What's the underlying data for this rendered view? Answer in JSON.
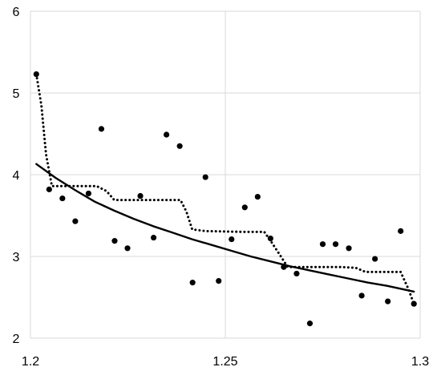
{
  "chart_data": {
    "type": "scatter",
    "title": "",
    "xlabel": "",
    "ylabel": "",
    "xlim": [
      1.2,
      1.3
    ],
    "ylim": [
      2,
      6
    ],
    "x_ticks": [
      1.2,
      1.25,
      1.3
    ],
    "x_tick_labels": [
      "1.2",
      "1.25",
      "1.3"
    ],
    "y_ticks": [
      2,
      3,
      4,
      5,
      6
    ],
    "y_tick_labels": [
      "2",
      "3",
      "4",
      "5",
      "6"
    ],
    "grid": true,
    "legend": "none",
    "colors": {
      "marker": "#000000",
      "line": "#000000",
      "grid": "#d9d9d9",
      "background": "#ffffff"
    },
    "series": [
      {
        "type": "scatter",
        "marker": "circle",
        "points": [
          [
            1.2015,
            5.23
          ],
          [
            1.2048,
            3.82
          ],
          [
            1.2082,
            3.71
          ],
          [
            1.2115,
            3.43
          ],
          [
            1.2149,
            3.77
          ],
          [
            1.2182,
            4.56
          ],
          [
            1.2216,
            3.19
          ],
          [
            1.2249,
            3.1
          ],
          [
            1.2282,
            3.74
          ],
          [
            1.2316,
            3.23
          ],
          [
            1.2349,
            4.49
          ],
          [
            1.2383,
            4.35
          ],
          [
            1.2416,
            2.68
          ],
          [
            1.2449,
            3.97
          ],
          [
            1.2483,
            2.7
          ],
          [
            1.2516,
            3.21
          ],
          [
            1.255,
            3.6
          ],
          [
            1.2583,
            3.73
          ],
          [
            1.2616,
            3.22
          ],
          [
            1.265,
            2.87
          ],
          [
            1.2683,
            2.79
          ],
          [
            1.2717,
            2.18
          ],
          [
            1.275,
            3.15
          ],
          [
            1.2783,
            3.15
          ],
          [
            1.2817,
            3.1
          ],
          [
            1.285,
            2.52
          ],
          [
            1.2884,
            2.97
          ],
          [
            1.2917,
            2.45
          ],
          [
            1.295,
            3.31
          ],
          [
            1.2984,
            2.42
          ]
        ]
      },
      {
        "type": "line",
        "style": "solid",
        "points": [
          [
            1.2015,
            4.13
          ],
          [
            1.2065,
            3.96
          ],
          [
            1.2115,
            3.81
          ],
          [
            1.2165,
            3.67
          ],
          [
            1.2215,
            3.56
          ],
          [
            1.2265,
            3.46
          ],
          [
            1.2315,
            3.37
          ],
          [
            1.2365,
            3.29
          ],
          [
            1.2415,
            3.21
          ],
          [
            1.2465,
            3.14
          ],
          [
            1.2515,
            3.07
          ],
          [
            1.2565,
            3.0
          ],
          [
            1.2615,
            2.94
          ],
          [
            1.2665,
            2.88
          ],
          [
            1.2715,
            2.83
          ],
          [
            1.2765,
            2.78
          ],
          [
            1.2815,
            2.73
          ],
          [
            1.2865,
            2.68
          ],
          [
            1.2915,
            2.64
          ],
          [
            1.2984,
            2.57
          ]
        ]
      },
      {
        "type": "line",
        "style": "dotted",
        "points": [
          [
            1.2015,
            5.23
          ],
          [
            1.2028,
            4.85
          ],
          [
            1.204,
            4.25
          ],
          [
            1.2055,
            3.86
          ],
          [
            1.21,
            3.86
          ],
          [
            1.217,
            3.86
          ],
          [
            1.2195,
            3.8
          ],
          [
            1.2215,
            3.69
          ],
          [
            1.23,
            3.69
          ],
          [
            1.2385,
            3.69
          ],
          [
            1.24,
            3.55
          ],
          [
            1.2415,
            3.33
          ],
          [
            1.245,
            3.31
          ],
          [
            1.255,
            3.3
          ],
          [
            1.26,
            3.3
          ],
          [
            1.2615,
            3.2
          ],
          [
            1.264,
            3.02
          ],
          [
            1.266,
            2.87
          ],
          [
            1.272,
            2.87
          ],
          [
            1.28,
            2.87
          ],
          [
            1.2835,
            2.86
          ],
          [
            1.286,
            2.81
          ],
          [
            1.295,
            2.81
          ],
          [
            1.297,
            2.6
          ],
          [
            1.2984,
            2.42
          ]
        ]
      }
    ]
  }
}
